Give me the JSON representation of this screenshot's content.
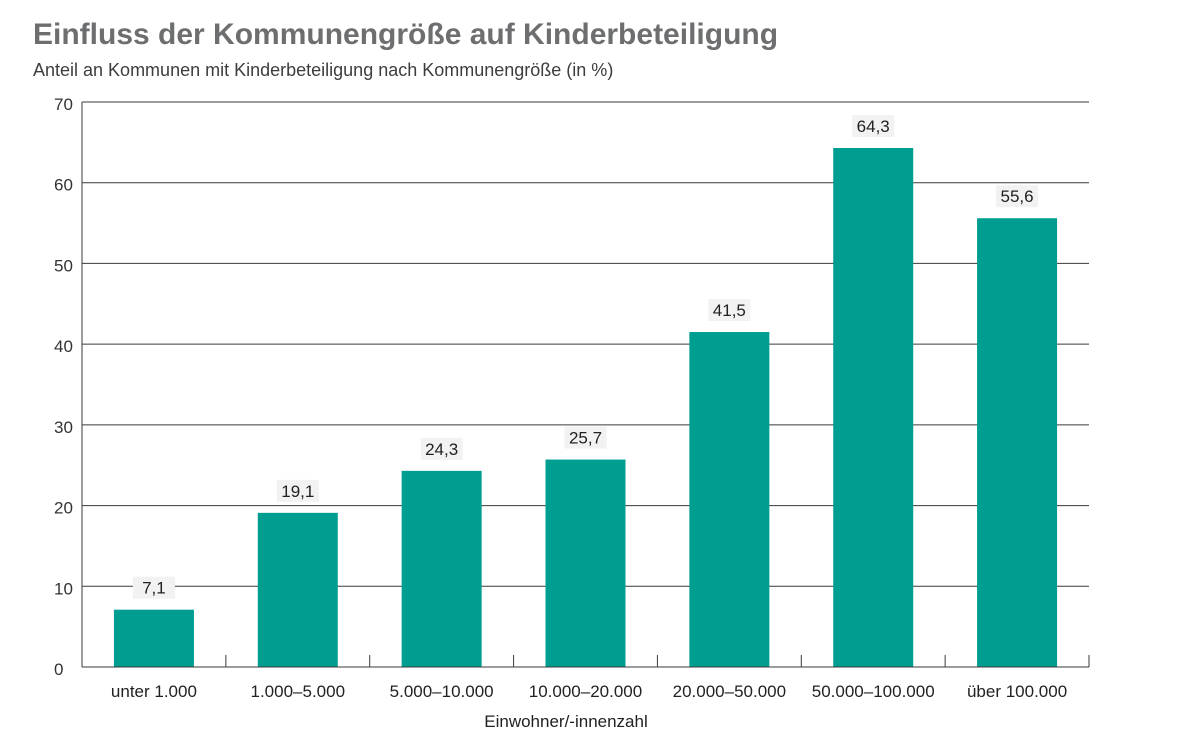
{
  "header": {
    "title": "Einfluss der Kommunengröße auf Kinderbeteiligung",
    "subtitle": "Anteil an Kommunen mit Kinderbeteiligung nach Kommunengröße (in %)"
  },
  "colors": {
    "bar": "#009d91",
    "grid": "#3a3a3a",
    "label_bg": "#f2f2f2"
  },
  "chart_data": {
    "type": "bar",
    "title": "Einfluss der Kommunengröße auf Kinderbeteiligung",
    "subtitle": "Anteil an Kommunen mit Kinderbeteiligung nach Kommunengröße (in %)",
    "xlabel": "Einwohner/-innenzahl",
    "ylabel": "",
    "ylim": [
      0,
      70
    ],
    "yticks": [
      0,
      10,
      20,
      30,
      40,
      50,
      60,
      70
    ],
    "grid": true,
    "categories": [
      "unter 1.000",
      "1.000–5.000",
      "5.000–10.000",
      "10.000–20.000",
      "20.000–50.000",
      "50.000–100.000",
      "über 100.000"
    ],
    "values": [
      7.1,
      19.1,
      24.3,
      25.7,
      41.5,
      64.3,
      55.6
    ],
    "value_labels": [
      "7,1",
      "19,1",
      "24,3",
      "25,7",
      "41,5",
      "64,3",
      "55,6"
    ]
  }
}
